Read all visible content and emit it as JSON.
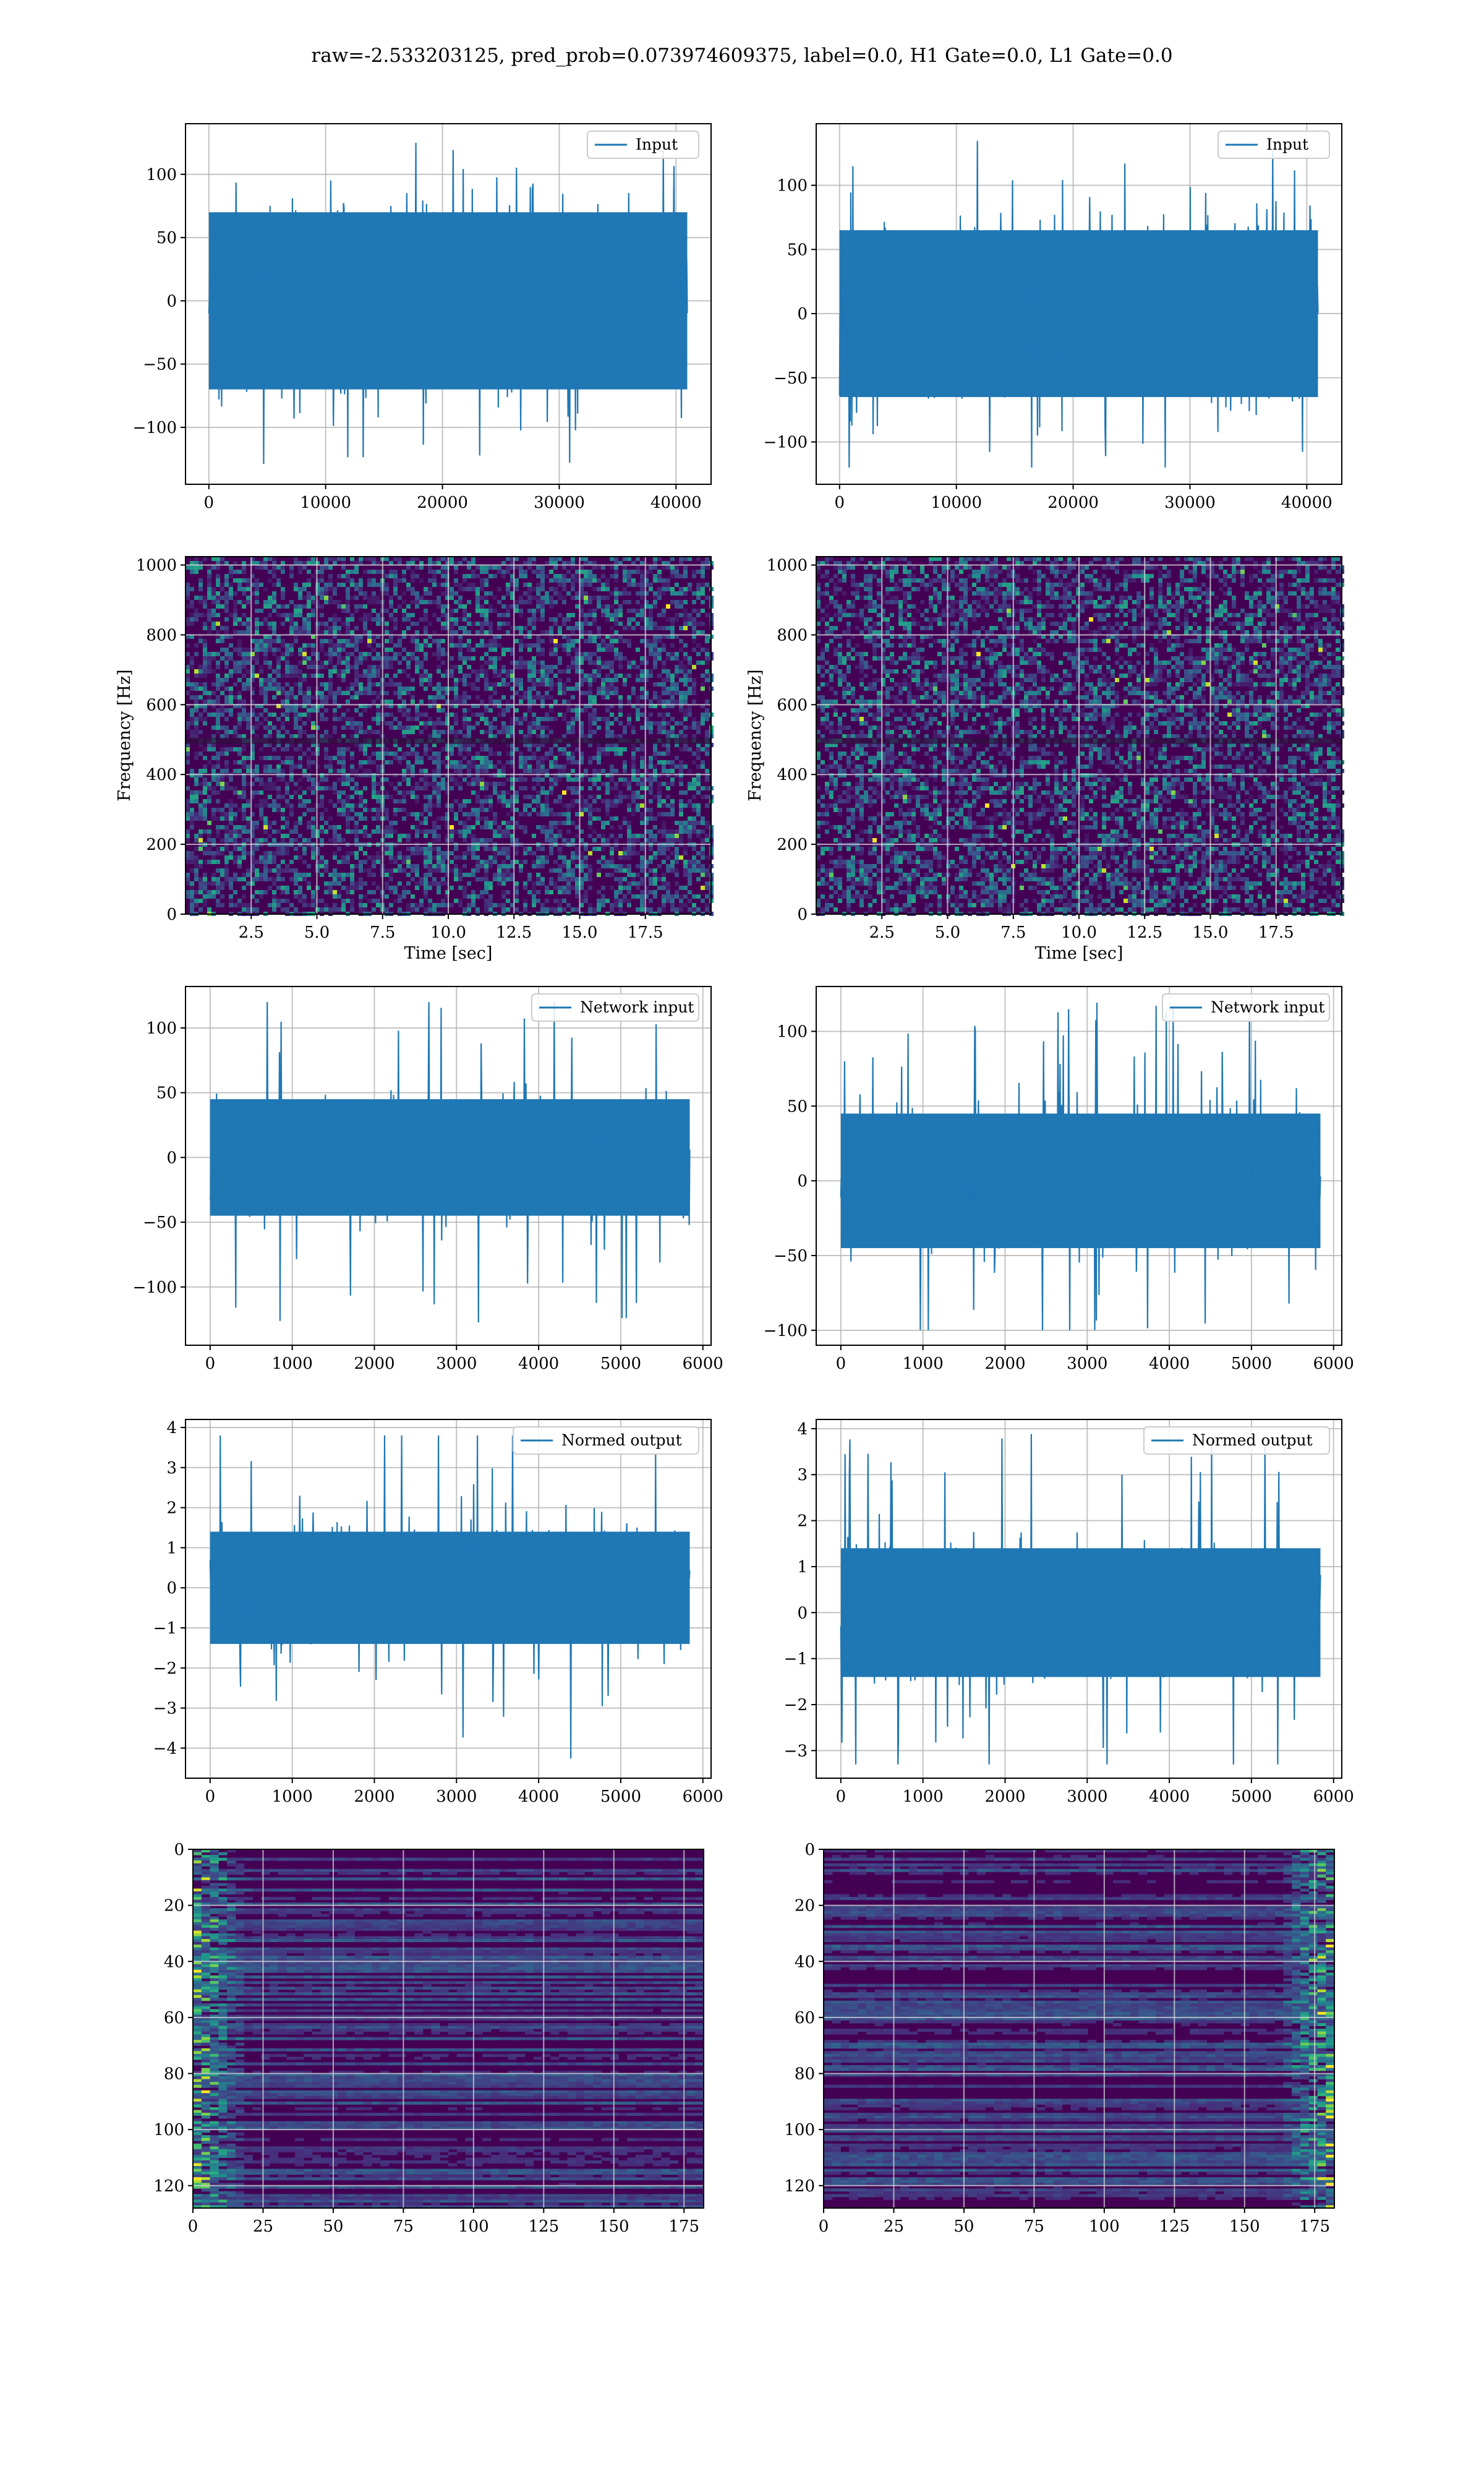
{
  "figure": {
    "suptitle": "raw=-2.533203125, pred_prob=0.073974609375, label=0.0, H1 Gate=0.0, L1 Gate=0.0",
    "colors": {
      "line": "#1f77b4",
      "grid": "#b0b0b0",
      "heat_low": "#440154",
      "heat_high": "#fde725"
    }
  },
  "chart_data": [
    {
      "id": "input-h1",
      "type": "line",
      "legend": "Input",
      "x_ticks": [
        "0",
        "10000",
        "20000",
        "30000",
        "40000"
      ],
      "x_tick_values": [
        0,
        10000,
        20000,
        30000,
        40000
      ],
      "y_ticks": [
        "−100",
        "−50",
        "0",
        "50",
        "100"
      ],
      "y_tick_values": [
        -100,
        -50,
        0,
        50,
        100
      ],
      "xlim": [
        -2000,
        43000
      ],
      "ylim": [
        -145,
        140
      ],
      "samples": 40960,
      "typical_band": [
        -70,
        70
      ],
      "extremes": [
        -130,
        125
      ],
      "xlabel": "",
      "ylabel": ""
    },
    {
      "id": "input-l1",
      "type": "line",
      "legend": "Input",
      "x_ticks": [
        "0",
        "10000",
        "20000",
        "30000",
        "40000"
      ],
      "x_tick_values": [
        0,
        10000,
        20000,
        30000,
        40000
      ],
      "y_ticks": [
        "−100",
        "−50",
        "0",
        "50",
        "100"
      ],
      "y_tick_values": [
        -100,
        -50,
        0,
        50,
        100
      ],
      "xlim": [
        -2000,
        43000
      ],
      "ylim": [
        -133,
        148
      ],
      "samples": 40960,
      "typical_band": [
        -65,
        65
      ],
      "extremes": [
        -120,
        135
      ],
      "xlabel": "",
      "ylabel": ""
    },
    {
      "id": "spec-h1",
      "type": "heatmap",
      "x_ticks": [
        "2.5",
        "5.0",
        "7.5",
        "10.0",
        "12.5",
        "15.0",
        "17.5"
      ],
      "x_tick_values": [
        2.5,
        5.0,
        7.5,
        10.0,
        12.5,
        15.0,
        17.5
      ],
      "y_ticks": [
        "0",
        "200",
        "400",
        "600",
        "800",
        "1000"
      ],
      "y_tick_values": [
        0,
        200,
        400,
        600,
        800,
        1000
      ],
      "xlim": [
        0,
        20
      ],
      "ylim": [
        0,
        1024
      ],
      "xlabel": "Time [sec]",
      "ylabel": "Frequency [Hz]"
    },
    {
      "id": "spec-l1",
      "type": "heatmap",
      "x_ticks": [
        "2.5",
        "5.0",
        "7.5",
        "10.0",
        "12.5",
        "15.0",
        "17.5"
      ],
      "x_tick_values": [
        2.5,
        5.0,
        7.5,
        10.0,
        12.5,
        15.0,
        17.5
      ],
      "y_ticks": [
        "0",
        "200",
        "400",
        "600",
        "800",
        "1000"
      ],
      "y_tick_values": [
        0,
        200,
        400,
        600,
        800,
        1000
      ],
      "xlim": [
        0,
        20
      ],
      "ylim": [
        0,
        1024
      ],
      "xlabel": "Time [sec]",
      "ylabel": "Frequency [Hz]"
    },
    {
      "id": "net-h1",
      "type": "line",
      "legend": "Network input",
      "x_ticks": [
        "0",
        "1000",
        "2000",
        "3000",
        "4000",
        "5000",
        "6000"
      ],
      "x_tick_values": [
        0,
        1000,
        2000,
        3000,
        4000,
        5000,
        6000
      ],
      "y_ticks": [
        "−100",
        "−50",
        "0",
        "50",
        "100"
      ],
      "y_tick_values": [
        -100,
        -50,
        0,
        50,
        100
      ],
      "xlim": [
        -300,
        6100
      ],
      "ylim": [
        -145,
        132
      ],
      "samples": 5840,
      "typical_band": [
        -45,
        45
      ],
      "extremes": [
        -135,
        120
      ],
      "xlabel": "",
      "ylabel": ""
    },
    {
      "id": "net-l1",
      "type": "line",
      "legend": "Network input",
      "x_ticks": [
        "0",
        "1000",
        "2000",
        "3000",
        "4000",
        "5000",
        "6000"
      ],
      "x_tick_values": [
        0,
        1000,
        2000,
        3000,
        4000,
        5000,
        6000
      ],
      "y_ticks": [
        "−100",
        "−50",
        "0",
        "50",
        "100"
      ],
      "y_tick_values": [
        -100,
        -50,
        0,
        50,
        100
      ],
      "xlim": [
        -300,
        6100
      ],
      "ylim": [
        -110,
        130
      ],
      "samples": 5840,
      "typical_band": [
        -45,
        45
      ],
      "extremes": [
        -100,
        120
      ],
      "xlabel": "",
      "ylabel": ""
    },
    {
      "id": "norm-h1",
      "type": "line",
      "legend": "Normed output",
      "x_ticks": [
        "0",
        "1000",
        "2000",
        "3000",
        "4000",
        "5000",
        "6000"
      ],
      "x_tick_values": [
        0,
        1000,
        2000,
        3000,
        4000,
        5000,
        6000
      ],
      "y_ticks": [
        "−4",
        "−3",
        "−2",
        "−1",
        "0",
        "1",
        "2",
        "3",
        "4"
      ],
      "y_tick_values": [
        -4,
        -3,
        -2,
        -1,
        0,
        1,
        2,
        3,
        4
      ],
      "xlim": [
        -300,
        6100
      ],
      "ylim": [
        -4.75,
        4.2
      ],
      "samples": 5840,
      "typical_band": [
        -1.4,
        1.4
      ],
      "extremes": [
        -4.4,
        3.8
      ],
      "xlabel": "",
      "ylabel": ""
    },
    {
      "id": "norm-l1",
      "type": "line",
      "legend": "Normed output",
      "x_ticks": [
        "0",
        "1000",
        "2000",
        "3000",
        "4000",
        "5000",
        "6000"
      ],
      "x_tick_values": [
        0,
        1000,
        2000,
        3000,
        4000,
        5000,
        6000
      ],
      "y_ticks": [
        "−3",
        "−2",
        "−1",
        "0",
        "1",
        "2",
        "3",
        "4"
      ],
      "y_tick_values": [
        -3,
        -2,
        -1,
        0,
        1,
        2,
        3,
        4
      ],
      "xlim": [
        -300,
        6100
      ],
      "ylim": [
        -3.6,
        4.2
      ],
      "samples": 5840,
      "typical_band": [
        -1.4,
        1.4
      ],
      "extremes": [
        -3.3,
        3.9
      ],
      "xlabel": "",
      "ylabel": ""
    },
    {
      "id": "feat-h1",
      "type": "heatmap",
      "x_ticks": [
        "0",
        "25",
        "50",
        "75",
        "100",
        "125",
        "150",
        "175"
      ],
      "x_tick_values": [
        0,
        25,
        50,
        75,
        100,
        125,
        150,
        175
      ],
      "y_ticks": [
        "0",
        "20",
        "40",
        "60",
        "80",
        "100",
        "120"
      ],
      "y_tick_values": [
        0,
        20,
        40,
        60,
        80,
        100,
        120
      ],
      "xlim": [
        0,
        182
      ],
      "ylim": [
        128,
        0
      ],
      "xlabel": "",
      "ylabel": ""
    },
    {
      "id": "feat-l1",
      "type": "heatmap",
      "x_ticks": [
        "0",
        "25",
        "50",
        "75",
        "100",
        "125",
        "150",
        "175"
      ],
      "x_tick_values": [
        0,
        25,
        50,
        75,
        100,
        125,
        150,
        175
      ],
      "y_ticks": [
        "0",
        "20",
        "40",
        "60",
        "80",
        "100",
        "120"
      ],
      "y_tick_values": [
        0,
        20,
        40,
        60,
        80,
        100,
        120
      ],
      "xlim": [
        0,
        182
      ],
      "ylim": [
        128,
        0
      ],
      "xlabel": "",
      "ylabel": ""
    }
  ]
}
